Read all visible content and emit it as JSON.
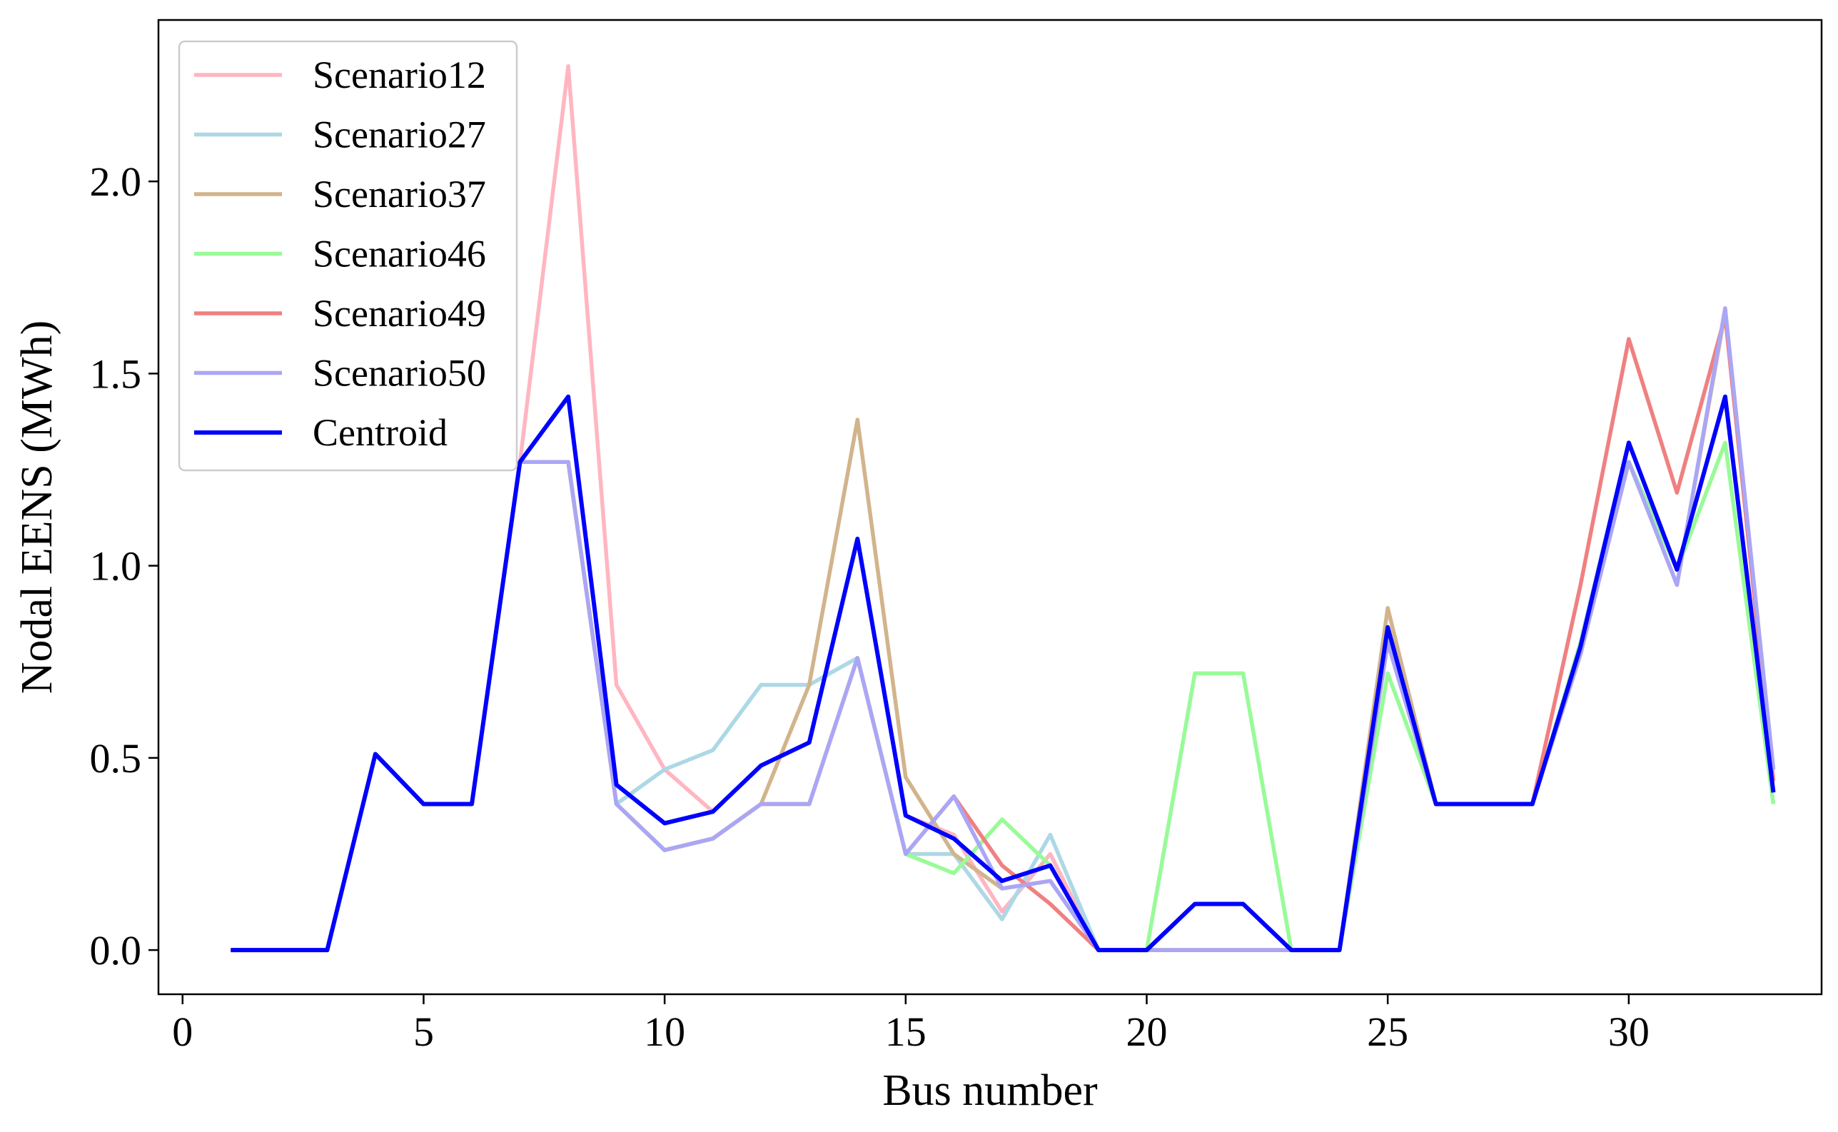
{
  "chart_data": {
    "type": "line",
    "title": "",
    "xlabel": "Bus number",
    "ylabel": "Nodal EENS (MWh)",
    "xlim": [
      -0.5,
      34.0
    ],
    "ylim": [
      -0.115,
      2.42
    ],
    "xticks": [
      0,
      5,
      10,
      15,
      20,
      25,
      30
    ],
    "yticks": [
      0.0,
      0.5,
      1.0,
      1.5,
      2.0
    ],
    "xtick_labels": [
      "0",
      "5",
      "10",
      "15",
      "20",
      "25",
      "30"
    ],
    "ytick_labels": [
      "0.0",
      "0.5",
      "1.0",
      "1.5",
      "2.0"
    ],
    "grid": false,
    "legend_position": "top-left",
    "x": [
      1,
      2,
      3,
      4,
      5,
      6,
      7,
      8,
      9,
      10,
      11,
      12,
      13,
      14,
      15,
      16,
      17,
      18,
      19,
      20,
      21,
      22,
      23,
      24,
      25,
      26,
      27,
      28,
      29,
      30,
      31,
      32,
      33
    ],
    "series": [
      {
        "name": "Scenario12",
        "color": "#ffb6c1",
        "values": [
          0,
          0,
          0,
          0.51,
          0.38,
          0.38,
          1.27,
          2.3,
          0.69,
          0.47,
          0.36,
          0.48,
          0.54,
          1.07,
          0.35,
          0.3,
          0.1,
          0.25,
          0,
          0,
          0,
          0,
          0,
          0,
          0.83,
          0.38,
          0.38,
          0.38,
          0.8,
          1.32,
          0.99,
          1.44,
          0.41
        ]
      },
      {
        "name": "Scenario27",
        "color": "#add8e6",
        "values": [
          0,
          0,
          0,
          0.51,
          0.38,
          0.38,
          1.27,
          1.27,
          0.38,
          0.47,
          0.52,
          0.69,
          0.69,
          0.76,
          0.25,
          0.25,
          0.08,
          0.3,
          0,
          0,
          0,
          0,
          0,
          0,
          0.83,
          0.38,
          0.38,
          0.38,
          0.8,
          1.32,
          0.99,
          1.44,
          0.41
        ]
      },
      {
        "name": "Scenario37",
        "color": "#d2b48c",
        "values": [
          0,
          0,
          0,
          0.51,
          0.38,
          0.38,
          1.27,
          1.27,
          0.38,
          0.26,
          0.29,
          0.38,
          0.69,
          1.38,
          0.45,
          0.25,
          0.16,
          0.18,
          0,
          0,
          0,
          0,
          0,
          0,
          0.89,
          0.38,
          0.38,
          0.38,
          0.8,
          1.27,
          0.95,
          1.66,
          0.47
        ]
      },
      {
        "name": "Scenario46",
        "color": "#98fb98",
        "values": [
          0,
          0,
          0,
          0.51,
          0.38,
          0.38,
          1.27,
          1.27,
          0.38,
          0.26,
          0.29,
          0.38,
          0.38,
          0.76,
          0.25,
          0.2,
          0.34,
          0.22,
          0,
          0,
          0.72,
          0.72,
          0,
          0,
          0.72,
          0.38,
          0.38,
          0.38,
          0.8,
          1.27,
          0.99,
          1.32,
          0.38
        ]
      },
      {
        "name": "Scenario49",
        "color": "#f08080",
        "values": [
          0,
          0,
          0,
          0.51,
          0.38,
          0.38,
          1.27,
          1.27,
          0.38,
          0.26,
          0.29,
          0.38,
          0.38,
          0.76,
          0.25,
          0.4,
          0.22,
          0.12,
          0,
          0,
          0,
          0,
          0,
          0,
          0.8,
          0.38,
          0.38,
          0.38,
          0.95,
          1.59,
          1.19,
          1.65,
          0.44
        ]
      },
      {
        "name": "Scenario50",
        "color": "#aaa6f6",
        "values": [
          0,
          0,
          0,
          0.51,
          0.38,
          0.38,
          1.27,
          1.27,
          0.38,
          0.26,
          0.29,
          0.38,
          0.38,
          0.76,
          0.25,
          0.4,
          0.16,
          0.18,
          0,
          0,
          0,
          0,
          0,
          0,
          0.8,
          0.38,
          0.38,
          0.38,
          0.77,
          1.27,
          0.95,
          1.67,
          0.47
        ]
      },
      {
        "name": "Centroid",
        "color": "#0000ff",
        "values": [
          0,
          0,
          0,
          0.51,
          0.38,
          0.38,
          1.27,
          1.44,
          0.43,
          0.33,
          0.36,
          0.48,
          0.54,
          1.07,
          0.35,
          0.29,
          0.18,
          0.22,
          0,
          0,
          0.12,
          0.12,
          0,
          0,
          0.84,
          0.38,
          0.38,
          0.38,
          0.79,
          1.32,
          0.99,
          1.44,
          0.41
        ]
      }
    ]
  }
}
